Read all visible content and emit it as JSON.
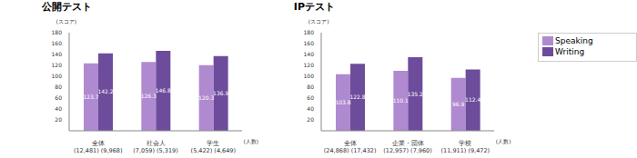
{
  "chart_data": [
    {
      "type": "bar",
      "title": "公開テスト",
      "y_label": "(スコア)",
      "x_label": "(人数)",
      "categories": [
        "全体\n(12,481) (9,968)",
        "社会人\n(7,059) (5,319)",
        "学生\n(5,422) (4,649)"
      ],
      "series": [
        {
          "name": "Speaking",
          "color": "#b08ad0",
          "values": [
            123.7,
            126.3,
            120.3
          ]
        },
        {
          "name": "Writing",
          "color": "#6e4c9c",
          "values": [
            142.2,
            146.8,
            136.9
          ]
        }
      ],
      "ylim": [
        0,
        180
      ],
      "yticks": [
        20,
        40,
        60,
        80,
        100,
        120,
        140,
        160,
        180
      ],
      "grid": false,
      "data_labels": true
    },
    {
      "type": "bar",
      "title": "IPテスト",
      "y_label": "(スコア)",
      "x_label": "(人数)",
      "categories": [
        "全体\n(24,868) (17,432)",
        "企業・団体\n(12,957) (7,960)",
        "学校\n(11,911) (9,472)"
      ],
      "series": [
        {
          "name": "Speaking",
          "color": "#b08ad0",
          "values": [
            103.8,
            110.1,
            96.9
          ]
        },
        {
          "name": "Writing",
          "color": "#6e4c9c",
          "values": [
            122.8,
            135.2,
            112.4
          ]
        }
      ],
      "ylim": [
        0,
        180
      ],
      "yticks": [
        20,
        40,
        60,
        80,
        100,
        120,
        140,
        160,
        180
      ],
      "grid": false,
      "data_labels": true,
      "legend": "right"
    }
  ]
}
